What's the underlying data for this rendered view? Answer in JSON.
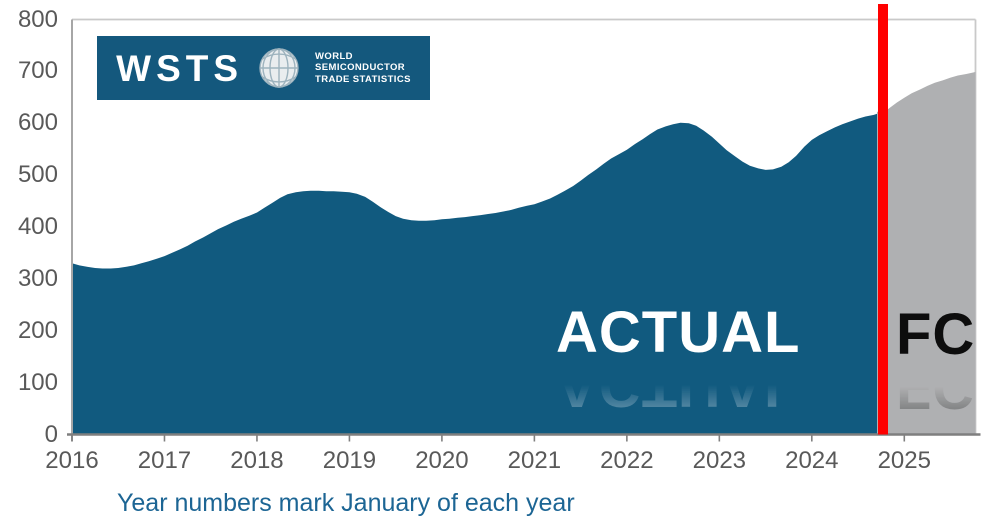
{
  "logo": {
    "wordmark": "WSTS",
    "org_lines": [
      "WORLD",
      "SEMICONDUCTOR",
      "TRADE STATISTICS"
    ]
  },
  "labels": {
    "actual": "ACTUAL",
    "forecast": "FC"
  },
  "caption": "Year numbers mark January of each year",
  "colors": {
    "actual_area": "#115A7F",
    "forecast_area": "#AFB0B2",
    "divider_line": "#FF0000",
    "axis_text": "#595959",
    "caption_text": "#1C6594",
    "bottom_axis": "#7F7F7F",
    "left_axis": "#A6A6A6",
    "plot_border": "#C9C9C9",
    "logo_background": "#14587D"
  },
  "chart_data": {
    "type": "area",
    "title": "",
    "xlabel": "",
    "ylabel": "",
    "grid": false,
    "legend_position": "in-plot text labels (ACTUAL / FC)",
    "ylim": [
      0,
      800
    ],
    "xlim": [
      2016,
      2025.77
    ],
    "yticks": [
      0,
      100,
      200,
      300,
      400,
      500,
      600,
      700,
      800
    ],
    "xticks": [
      2016,
      2017,
      2018,
      2019,
      2020,
      2021,
      2022,
      2023,
      2024,
      2025
    ],
    "x_unit": "fractional year, .0 = January",
    "divider_x": 2024.77,
    "series": [
      {
        "name": "ACTUAL",
        "points": [
          [
            2016.0,
            330
          ],
          [
            2016.08,
            326
          ],
          [
            2016.17,
            323
          ],
          [
            2016.25,
            321
          ],
          [
            2016.33,
            320
          ],
          [
            2016.42,
            320
          ],
          [
            2016.5,
            321
          ],
          [
            2016.58,
            323
          ],
          [
            2016.67,
            326
          ],
          [
            2016.75,
            330
          ],
          [
            2016.83,
            334
          ],
          [
            2016.92,
            339
          ],
          [
            2017.0,
            344
          ],
          [
            2017.08,
            350
          ],
          [
            2017.17,
            357
          ],
          [
            2017.25,
            364
          ],
          [
            2017.33,
            372
          ],
          [
            2017.42,
            380
          ],
          [
            2017.5,
            388
          ],
          [
            2017.58,
            396
          ],
          [
            2017.67,
            403
          ],
          [
            2017.75,
            410
          ],
          [
            2017.83,
            416
          ],
          [
            2017.92,
            422
          ],
          [
            2018.0,
            428
          ],
          [
            2018.08,
            437
          ],
          [
            2018.17,
            447
          ],
          [
            2018.25,
            456
          ],
          [
            2018.33,
            463
          ],
          [
            2018.42,
            467
          ],
          [
            2018.5,
            469
          ],
          [
            2018.58,
            470
          ],
          [
            2018.67,
            470
          ],
          [
            2018.75,
            469
          ],
          [
            2018.83,
            469
          ],
          [
            2018.92,
            468
          ],
          [
            2019.0,
            467
          ],
          [
            2019.08,
            464
          ],
          [
            2019.17,
            458
          ],
          [
            2019.25,
            449
          ],
          [
            2019.33,
            439
          ],
          [
            2019.42,
            429
          ],
          [
            2019.5,
            421
          ],
          [
            2019.58,
            416
          ],
          [
            2019.67,
            413
          ],
          [
            2019.75,
            412
          ],
          [
            2019.83,
            412
          ],
          [
            2019.92,
            413
          ],
          [
            2020.0,
            415
          ],
          [
            2020.08,
            416
          ],
          [
            2020.17,
            418
          ],
          [
            2020.25,
            419
          ],
          [
            2020.33,
            421
          ],
          [
            2020.42,
            423
          ],
          [
            2020.5,
            425
          ],
          [
            2020.58,
            427
          ],
          [
            2020.67,
            430
          ],
          [
            2020.75,
            433
          ],
          [
            2020.83,
            437
          ],
          [
            2020.92,
            441
          ],
          [
            2021.0,
            444
          ],
          [
            2021.08,
            449
          ],
          [
            2021.17,
            455
          ],
          [
            2021.25,
            462
          ],
          [
            2021.33,
            470
          ],
          [
            2021.42,
            479
          ],
          [
            2021.5,
            489
          ],
          [
            2021.58,
            500
          ],
          [
            2021.67,
            511
          ],
          [
            2021.75,
            522
          ],
          [
            2021.83,
            532
          ],
          [
            2021.92,
            541
          ],
          [
            2022.0,
            549
          ],
          [
            2022.08,
            559
          ],
          [
            2022.17,
            569
          ],
          [
            2022.25,
            579
          ],
          [
            2022.33,
            588
          ],
          [
            2022.42,
            594
          ],
          [
            2022.5,
            598
          ],
          [
            2022.58,
            601
          ],
          [
            2022.67,
            600
          ],
          [
            2022.75,
            595
          ],
          [
            2022.83,
            586
          ],
          [
            2022.92,
            574
          ],
          [
            2023.0,
            561
          ],
          [
            2023.08,
            548
          ],
          [
            2023.17,
            536
          ],
          [
            2023.25,
            526
          ],
          [
            2023.33,
            518
          ],
          [
            2023.42,
            513
          ],
          [
            2023.5,
            510
          ],
          [
            2023.58,
            511
          ],
          [
            2023.67,
            516
          ],
          [
            2023.75,
            525
          ],
          [
            2023.83,
            537
          ],
          [
            2023.92,
            555
          ],
          [
            2024.0,
            568
          ],
          [
            2024.08,
            577
          ],
          [
            2024.17,
            585
          ],
          [
            2024.25,
            592
          ],
          [
            2024.33,
            598
          ],
          [
            2024.42,
            604
          ],
          [
            2024.5,
            609
          ],
          [
            2024.58,
            613
          ],
          [
            2024.67,
            616
          ],
          [
            2024.77,
            622
          ]
        ]
      },
      {
        "name": "FC",
        "points": [
          [
            2024.77,
            622
          ],
          [
            2024.83,
            628
          ],
          [
            2024.92,
            640
          ],
          [
            2025.0,
            649
          ],
          [
            2025.08,
            658
          ],
          [
            2025.17,
            665
          ],
          [
            2025.25,
            672
          ],
          [
            2025.33,
            678
          ],
          [
            2025.42,
            683
          ],
          [
            2025.5,
            688
          ],
          [
            2025.58,
            692
          ],
          [
            2025.67,
            695
          ],
          [
            2025.75,
            698
          ],
          [
            2025.77,
            699
          ]
        ]
      }
    ]
  }
}
